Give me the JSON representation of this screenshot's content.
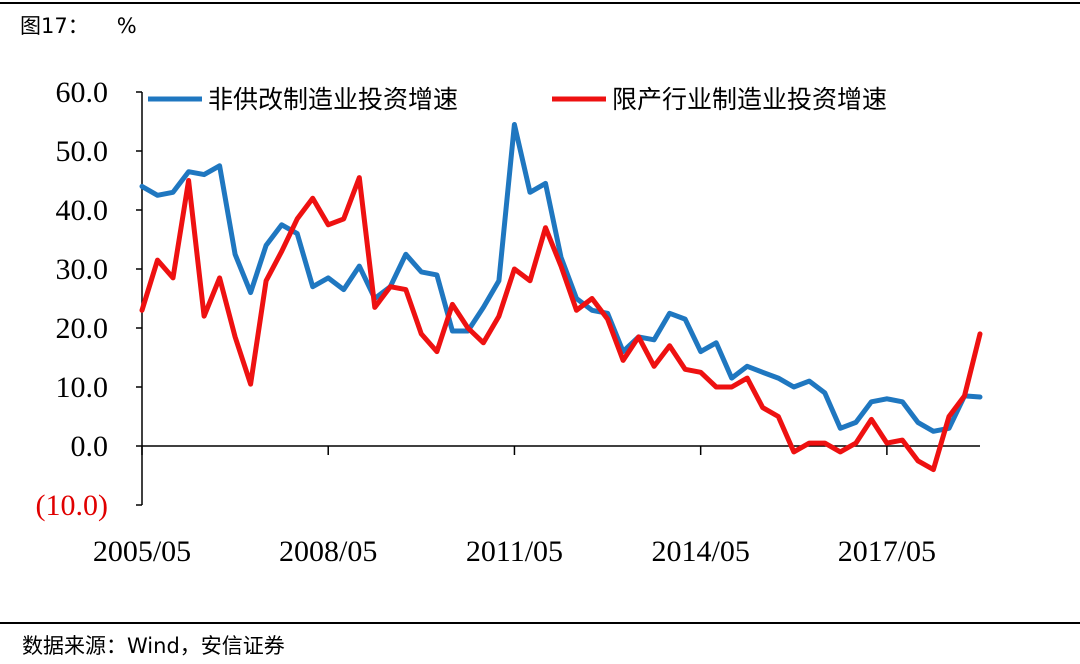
{
  "figure": {
    "label": "图17：",
    "unit": "%",
    "source": "数据来源：Wind，安信证券"
  },
  "colors": {
    "series1": "#1f77c0",
    "series2": "#ee1111",
    "negative_label": "#e00000"
  },
  "chart_data": {
    "type": "line",
    "title": "",
    "xlabel": "",
    "ylabel": "%",
    "ylim": [
      -10,
      60
    ],
    "yticks": [
      60,
      50,
      40,
      30,
      20,
      10,
      0,
      -10
    ],
    "ytick_labels": [
      "60.0",
      "50.0",
      "40.0",
      "30.0",
      "20.0",
      "10.0",
      "0.0",
      "(10.0)"
    ],
    "xtick_labels": [
      "2005/05",
      "2008/05",
      "2011/05",
      "2014/05",
      "2017/05"
    ],
    "x_start": "2005/05",
    "x_step": "quarter",
    "legend_position": "top",
    "grid": false,
    "series": [
      {
        "name": "非供改制造业投资增速",
        "color": "#1f77c0",
        "values": [
          44,
          42.5,
          43,
          46.5,
          46,
          47.5,
          32.5,
          26,
          34,
          37.5,
          36,
          27,
          28.5,
          26.5,
          30.5,
          25,
          27,
          32.5,
          29.5,
          29,
          19.5,
          19.5,
          23.5,
          28,
          54.5,
          43,
          44.5,
          32,
          25,
          23,
          22.5,
          16,
          18.5,
          18,
          22.5,
          21.5,
          16,
          17.5,
          11.5,
          13.5,
          12.5,
          11.5,
          10,
          11,
          9,
          3,
          4,
          7.5,
          8,
          7.5,
          4,
          2.5,
          3,
          8.5,
          8.3
        ]
      },
      {
        "name": "限产行业制造业投资增速",
        "color": "#ee1111",
        "values": [
          23,
          31.5,
          28.5,
          45,
          22,
          28.5,
          18.5,
          10.5,
          28,
          33,
          38.5,
          42,
          37.5,
          38.5,
          45.5,
          23.5,
          27,
          26.5,
          19,
          16,
          24,
          20,
          17.5,
          22,
          30,
          28,
          37,
          30.5,
          23,
          25,
          21.5,
          14.5,
          18.5,
          13.5,
          17,
          13,
          12.5,
          10,
          10,
          11.5,
          6.5,
          5,
          -1,
          0.5,
          0.5,
          -1,
          0.5,
          4.5,
          0.5,
          1,
          -2.5,
          -4,
          5,
          8.5,
          19
        ]
      }
    ]
  }
}
